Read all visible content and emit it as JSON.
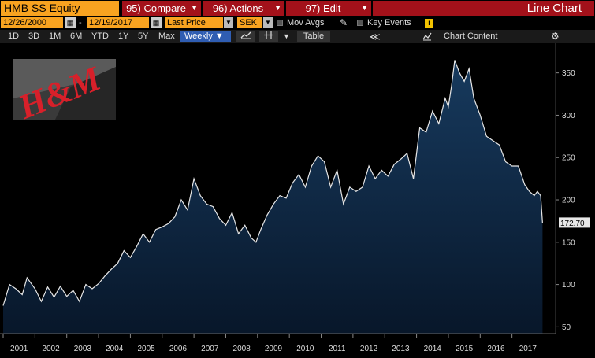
{
  "header": {
    "ticker": "HMB SS Equity",
    "compare_label": "95) Compare",
    "actions_label": "96) Actions",
    "edit_label": "97) Edit",
    "chart_type_label": "Line Chart"
  },
  "controls": {
    "start_date": "12/26/2000",
    "end_date": "12/19/2017",
    "date_separator": "-",
    "field": "Last Price",
    "currency": "SEK",
    "mov_avgs_label": "Mov Avgs",
    "key_events_label": "Key Events",
    "info_badge": "i"
  },
  "toolbar": {
    "ranges": [
      "1D",
      "3D",
      "1M",
      "6M",
      "YTD",
      "1Y",
      "5Y",
      "Max"
    ],
    "periodicity": "Weekly ▼",
    "table_label": "Table",
    "collapse_label": "≪",
    "chart_content_label": "Chart Content"
  },
  "colors": {
    "accent_orange": "#f8a320",
    "menu_red": "#a3111a",
    "active_blue": "#2f5db2",
    "area_top": "#173a5e",
    "area_bottom": "#08172a",
    "line": "#e6e6e6"
  },
  "icons": {
    "calendar": "calendar-icon",
    "pencil": "pencil-icon",
    "line_chart": "line-chart-icon",
    "crosshair": "crosshair-icon",
    "gear": "gear-icon"
  },
  "chart_data": {
    "type": "area",
    "title": "",
    "xlabel": "",
    "ylabel": "",
    "last_price_label": "172.70",
    "x_tick_labels": [
      "2001",
      "2002",
      "2003",
      "2004",
      "2005",
      "2006",
      "2007",
      "2008",
      "2009",
      "2010",
      "2011",
      "2012",
      "2013",
      "2014",
      "2015",
      "2016",
      "2017"
    ],
    "y_ticks": [
      50,
      100,
      150,
      200,
      250,
      300,
      350
    ],
    "ylim": [
      42,
      385
    ],
    "xlim": [
      2001.0,
      2018.0
    ],
    "grid": false,
    "series": [
      {
        "values_x": [
          2001.0,
          2001.2,
          2001.4,
          2001.6,
          2001.75,
          2002.0,
          2002.2,
          2002.4,
          2002.6,
          2002.8,
          2003.0,
          2003.2,
          2003.4,
          2003.6,
          2003.8,
          2004.0,
          2004.2,
          2004.4,
          2004.6,
          2004.8,
          2005.0,
          2005.2,
          2005.4,
          2005.6,
          2005.8,
          2006.0,
          2006.2,
          2006.4,
          2006.6,
          2006.8,
          2007.0,
          2007.2,
          2007.4,
          2007.6,
          2007.8,
          2008.0,
          2008.2,
          2008.4,
          2008.6,
          2008.8,
          2008.95,
          2009.1,
          2009.3,
          2009.5,
          2009.7,
          2009.9,
          2010.1,
          2010.3,
          2010.5,
          2010.7,
          2010.9,
          2011.1,
          2011.3,
          2011.5,
          2011.7,
          2011.9,
          2012.1,
          2012.3,
          2012.5,
          2012.7,
          2012.9,
          2013.1,
          2013.3,
          2013.5,
          2013.7,
          2013.9,
          2014.1,
          2014.3,
          2014.5,
          2014.7,
          2014.9,
          2015.0,
          2015.1,
          2015.2,
          2015.35,
          2015.5,
          2015.65,
          2015.8,
          2016.0,
          2016.2,
          2016.4,
          2016.6,
          2016.8,
          2017.0,
          2017.2,
          2017.4,
          2017.55,
          2017.7,
          2017.8,
          2017.9,
          2017.96
        ],
        "values_y": [
          75,
          100,
          95,
          88,
          108,
          95,
          80,
          97,
          85,
          98,
          86,
          93,
          80,
          100,
          95,
          101,
          110,
          118,
          125,
          140,
          132,
          145,
          160,
          150,
          165,
          168,
          172,
          180,
          200,
          188,
          225,
          205,
          195,
          192,
          178,
          170,
          185,
          160,
          170,
          155,
          150,
          165,
          182,
          195,
          205,
          202,
          220,
          230,
          215,
          240,
          252,
          245,
          215,
          235,
          195,
          215,
          210,
          215,
          240,
          225,
          235,
          228,
          242,
          248,
          255,
          225,
          285,
          280,
          305,
          290,
          320,
          310,
          335,
          365,
          350,
          340,
          355,
          320,
          300,
          275,
          270,
          265,
          245,
          240,
          240,
          218,
          210,
          205,
          210,
          205,
          172.7
        ]
      }
    ]
  }
}
